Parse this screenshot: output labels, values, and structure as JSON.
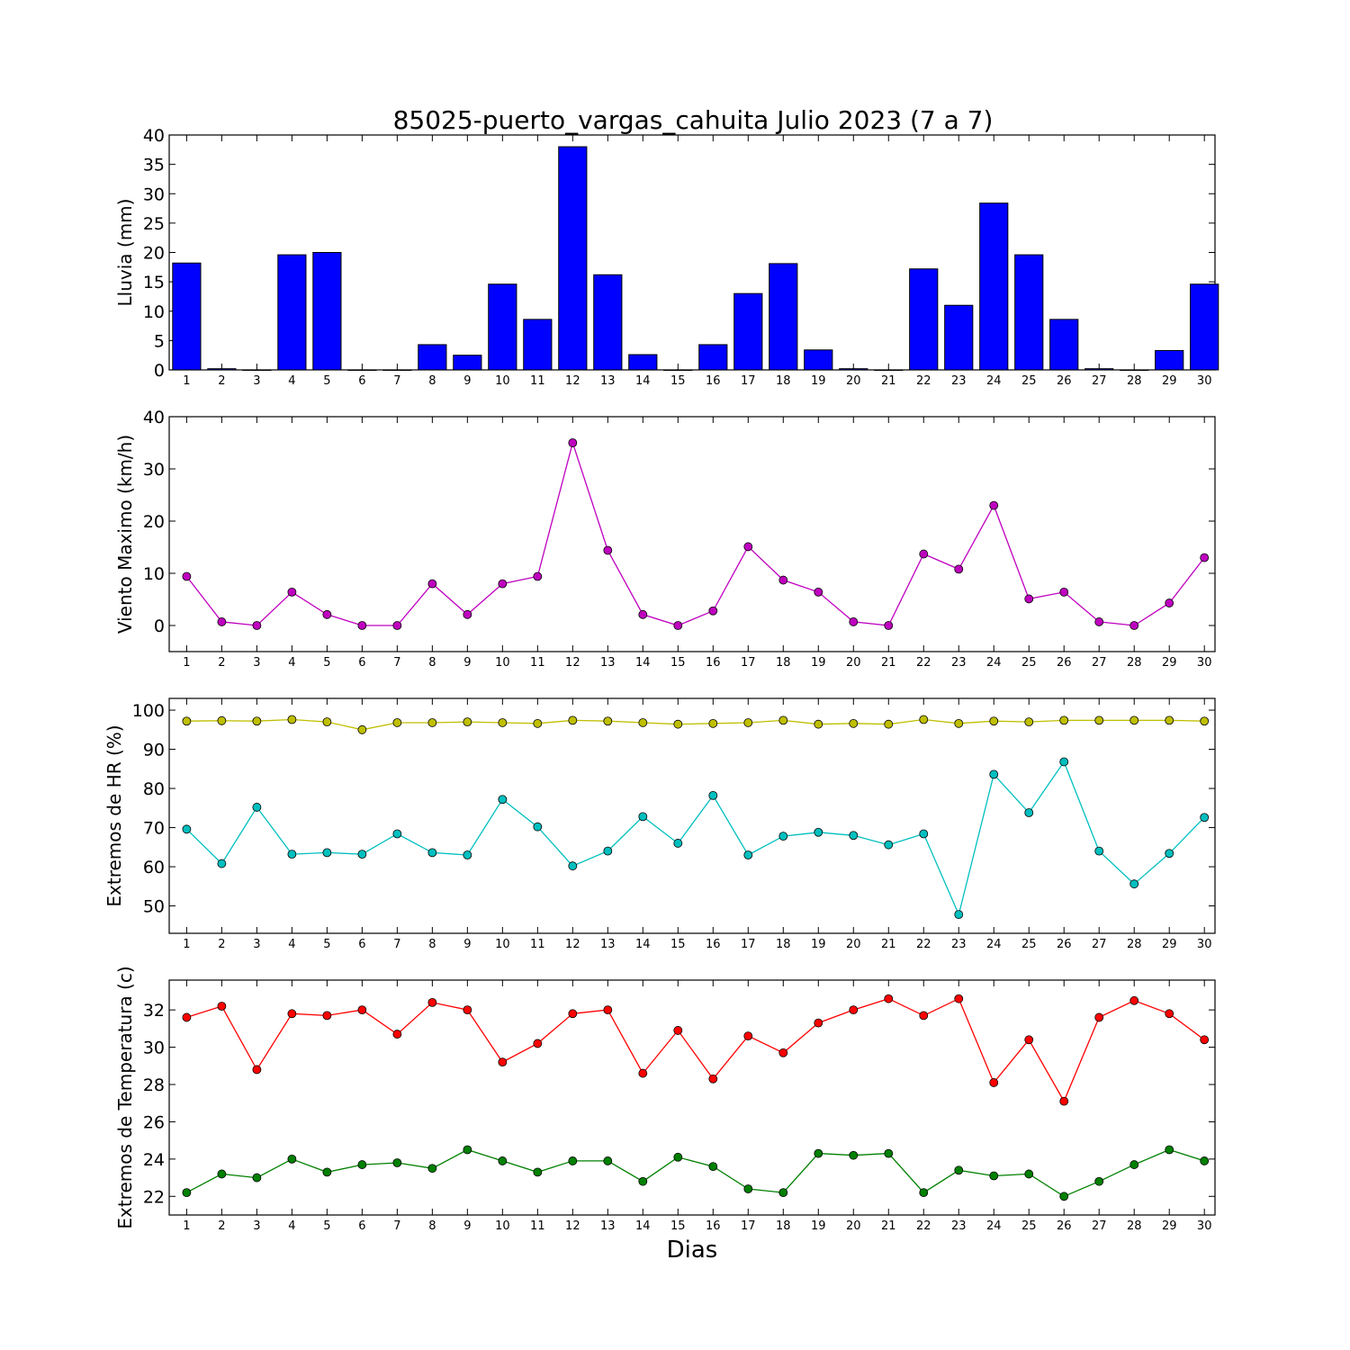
{
  "chart_data": [
    {
      "type": "bar",
      "title": "85025-puerto_vargas_cahuita Julio 2023  (7 a 7)",
      "ylabel": "Lluvia (mm)",
      "xlabel": "",
      "categories": [
        "1",
        "2",
        "3",
        "4",
        "5",
        "6",
        "7",
        "8",
        "9",
        "10",
        "11",
        "12",
        "13",
        "14",
        "15",
        "16",
        "17",
        "18",
        "19",
        "20",
        "21",
        "22",
        "23",
        "24",
        "25",
        "26",
        "27",
        "28",
        "29",
        "30"
      ],
      "values": [
        18.2,
        0.2,
        0,
        19.6,
        20.0,
        0,
        0,
        4.3,
        2.5,
        14.6,
        8.6,
        38.0,
        16.2,
        2.6,
        0,
        4.3,
        13.0,
        18.1,
        3.4,
        0.2,
        0,
        17.2,
        11.0,
        28.4,
        19.6,
        8.6,
        0.2,
        0,
        3.3,
        14.6
      ],
      "ylim": [
        0,
        40
      ],
      "yticks": [
        0,
        5,
        10,
        15,
        20,
        25,
        30,
        35,
        40
      ],
      "color": "#0000ff"
    },
    {
      "type": "line",
      "title": "",
      "ylabel": "Viento Maximo (km/h)",
      "xlabel": "",
      "categories": [
        "1",
        "2",
        "3",
        "4",
        "5",
        "6",
        "7",
        "8",
        "9",
        "10",
        "11",
        "12",
        "13",
        "14",
        "15",
        "16",
        "17",
        "18",
        "19",
        "20",
        "21",
        "22",
        "23",
        "24",
        "25",
        "26",
        "27",
        "28",
        "29",
        "30"
      ],
      "series": [
        {
          "values": [
            9.4,
            0.7,
            0,
            6.4,
            2.1,
            0,
            0,
            8.0,
            2.1,
            8.0,
            9.4,
            35.0,
            14.4,
            2.1,
            0,
            2.8,
            15.1,
            8.7,
            6.4,
            0.7,
            0,
            13.7,
            10.8,
            23.0,
            5.1,
            6.4,
            0.7,
            0,
            4.3,
            13.0
          ],
          "color": "#bf00bf"
        }
      ],
      "ylim": [
        -5,
        40
      ],
      "yticks": [
        0,
        10,
        20,
        30,
        40
      ]
    },
    {
      "type": "line",
      "title": "",
      "ylabel": "Extremos de HR (%)",
      "xlabel": "",
      "categories": [
        "1",
        "2",
        "3",
        "4",
        "5",
        "6",
        "7",
        "8",
        "9",
        "10",
        "11",
        "12",
        "13",
        "14",
        "15",
        "16",
        "17",
        "18",
        "19",
        "20",
        "21",
        "22",
        "23",
        "24",
        "25",
        "26",
        "27",
        "28",
        "29",
        "30"
      ],
      "series": [
        {
          "values": [
            97.2,
            97.3,
            97.2,
            97.6,
            97.0,
            95.0,
            96.8,
            96.8,
            97.0,
            96.8,
            96.6,
            97.4,
            97.2,
            96.8,
            96.4,
            96.6,
            96.8,
            97.4,
            96.4,
            96.6,
            96.4,
            97.6,
            96.6,
            97.2,
            97.0,
            97.4,
            97.4,
            97.4,
            97.4,
            97.2
          ],
          "color": "#bfbf00"
        },
        {
          "values": [
            69.6,
            60.8,
            75.2,
            63.2,
            63.6,
            63.2,
            68.4,
            63.6,
            63.0,
            77.2,
            70.2,
            60.2,
            64.0,
            72.8,
            66.0,
            78.2,
            63.0,
            67.8,
            68.8,
            68.0,
            65.6,
            68.4,
            47.8,
            83.6,
            73.8,
            86.8,
            64.0,
            55.6,
            63.4,
            72.6
          ],
          "color": "#00bfbf"
        }
      ],
      "ylim": [
        43,
        103
      ],
      "yticks": [
        50,
        60,
        70,
        80,
        90,
        100
      ]
    },
    {
      "type": "line",
      "title": "",
      "ylabel": "Extremos de Temperatura (c)",
      "xlabel": "Dias",
      "categories": [
        "1",
        "2",
        "3",
        "4",
        "5",
        "6",
        "7",
        "8",
        "9",
        "10",
        "11",
        "12",
        "13",
        "14",
        "15",
        "16",
        "17",
        "18",
        "19",
        "20",
        "21",
        "22",
        "23",
        "24",
        "25",
        "26",
        "27",
        "28",
        "29",
        "30"
      ],
      "series": [
        {
          "values": [
            31.6,
            32.2,
            28.8,
            31.8,
            31.7,
            32.0,
            30.7,
            32.4,
            32.0,
            29.2,
            30.2,
            31.8,
            32.0,
            28.6,
            30.9,
            28.3,
            30.6,
            29.7,
            31.3,
            32.0,
            32.6,
            31.7,
            32.6,
            28.1,
            30.4,
            27.1,
            31.6,
            32.5,
            31.8,
            30.4
          ],
          "color": "#ff0000"
        },
        {
          "values": [
            22.2,
            23.2,
            23.0,
            24.0,
            23.3,
            23.7,
            23.8,
            23.5,
            24.5,
            23.9,
            23.3,
            23.9,
            23.9,
            22.8,
            24.1,
            23.6,
            22.4,
            22.2,
            24.3,
            24.2,
            24.3,
            22.2,
            23.4,
            23.1,
            23.2,
            22.0,
            22.8,
            23.7,
            24.5,
            23.9
          ],
          "color": "#008000"
        }
      ],
      "ylim": [
        21,
        33.6
      ],
      "yticks": [
        22,
        24,
        26,
        28,
        30,
        32
      ]
    }
  ]
}
